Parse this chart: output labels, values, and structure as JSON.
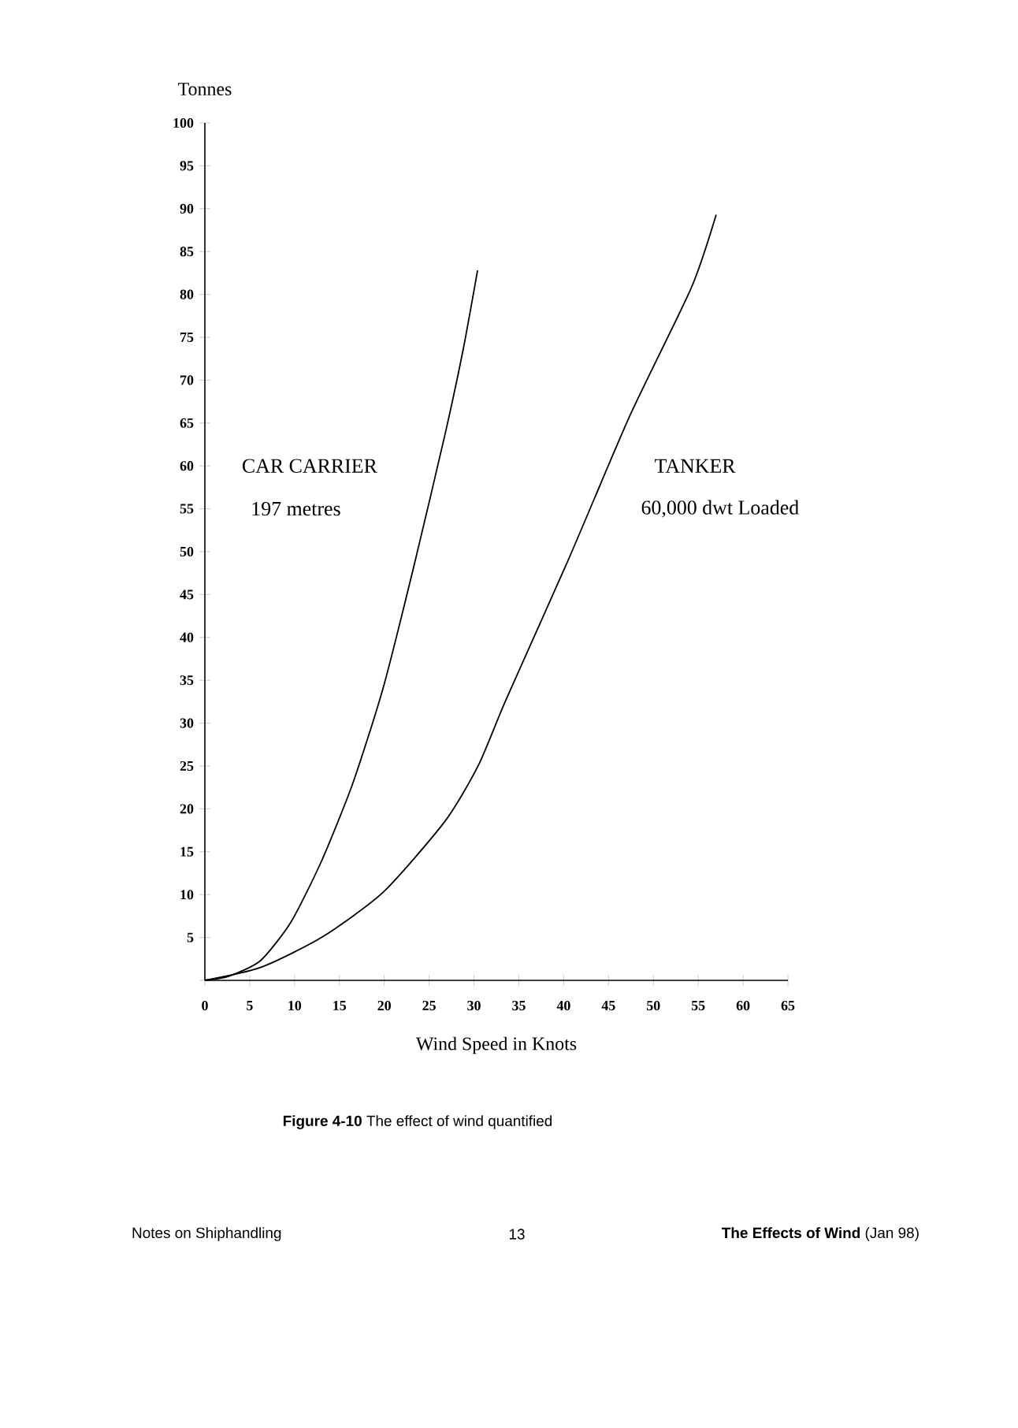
{
  "chart_data": {
    "type": "line",
    "title": "**Figure 4-10**  The effect of wind quantified",
    "xlabel": "Wind Speed in Knots",
    "ylabel": "Tonnes",
    "xlim": [
      0,
      65
    ],
    "ylim": [
      0,
      100
    ],
    "xticks": [
      0,
      5,
      10,
      15,
      20,
      25,
      30,
      35,
      40,
      45,
      50,
      55,
      60,
      65
    ],
    "yticks": [
      {
        "value": 0,
        "label": null
      },
      5,
      10,
      15,
      20,
      25,
      30,
      35,
      40,
      45,
      50,
      55,
      60,
      65,
      70,
      75,
      80,
      85,
      90,
      95,
      100
    ],
    "grid": false,
    "legend": false,
    "marker": "none",
    "line_style": "solid",
    "series": [
      {
        "name": "CAR CARRIER",
        "color": "#000000",
        "x": [
          0,
          2.7,
          6.2,
          9.6,
          13,
          16.5,
          19.9,
          23.3,
          26.8,
          28.8,
          30.4
        ],
        "values": [
          0,
          0.5,
          2.3,
          6.8,
          13.9,
          23,
          34.2,
          48.3,
          63.8,
          73.6,
          82.8
        ]
      },
      {
        "name": "TANKER",
        "color": "#000000",
        "x": [
          0,
          6.2,
          13,
          19.9,
          26.8,
          30.5,
          33.6,
          40.5,
          47.4,
          54.2,
          57
        ],
        "values": [
          0,
          1.5,
          5,
          10.3,
          18.6,
          25.1,
          32.8,
          49,
          65.9,
          80.7,
          89.3
        ]
      }
    ],
    "annotations": [
      "197 metres",
      "60,000 dwt  Loaded",
      "Notes on Shiphandling",
      "13",
      "**The Effects of Wind** (Jan 98)"
    ]
  }
}
